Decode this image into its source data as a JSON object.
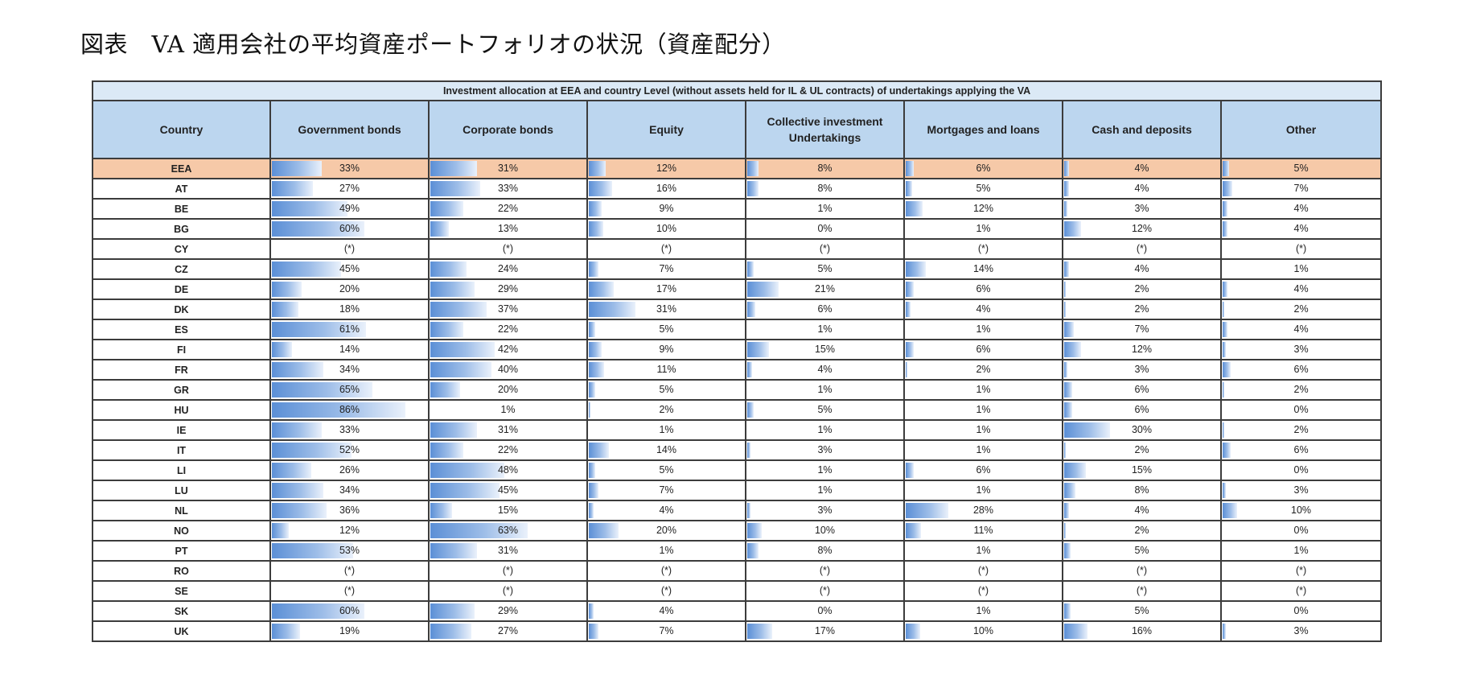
{
  "title": "図表　VA 適用会社の平均資産ポートフォリオの状況（資産配分）",
  "chart_data": {
    "type": "table",
    "caption": "Investment allocation at EEA and country Level (without assets held for IL & UL contracts) of undertakings applying the VA",
    "columns": [
      "Country",
      "Government bonds",
      "Corporate bonds",
      "Equity",
      "Collective investment Undertakings",
      "Mortgages and loans",
      "Cash and deposits",
      "Other"
    ],
    "highlight_row": "EEA",
    "bar_color": "#5b8fd6",
    "highlight_color": "#f6c9a8",
    "rows": [
      {
        "country": "EEA",
        "values": [
          "33%",
          "31%",
          "12%",
          "8%",
          "6%",
          "4%",
          "5%"
        ]
      },
      {
        "country": "AT",
        "values": [
          "27%",
          "33%",
          "16%",
          "8%",
          "5%",
          "4%",
          "7%"
        ]
      },
      {
        "country": "BE",
        "values": [
          "49%",
          "22%",
          "9%",
          "1%",
          "12%",
          "3%",
          "4%"
        ]
      },
      {
        "country": "BG",
        "values": [
          "60%",
          "13%",
          "10%",
          "0%",
          "1%",
          "12%",
          "4%"
        ]
      },
      {
        "country": "CY",
        "values": [
          "(*)",
          "(*)",
          "(*)",
          "(*)",
          "(*)",
          "(*)",
          "(*)"
        ]
      },
      {
        "country": "CZ",
        "values": [
          "45%",
          "24%",
          "7%",
          "5%",
          "14%",
          "4%",
          "1%"
        ]
      },
      {
        "country": "DE",
        "values": [
          "20%",
          "29%",
          "17%",
          "21%",
          "6%",
          "2%",
          "4%"
        ]
      },
      {
        "country": "DK",
        "values": [
          "18%",
          "37%",
          "31%",
          "6%",
          "4%",
          "2%",
          "2%"
        ]
      },
      {
        "country": "ES",
        "values": [
          "61%",
          "22%",
          "5%",
          "1%",
          "1%",
          "7%",
          "4%"
        ]
      },
      {
        "country": "FI",
        "values": [
          "14%",
          "42%",
          "9%",
          "15%",
          "6%",
          "12%",
          "3%"
        ]
      },
      {
        "country": "FR",
        "values": [
          "34%",
          "40%",
          "11%",
          "4%",
          "2%",
          "3%",
          "6%"
        ]
      },
      {
        "country": "GR",
        "values": [
          "65%",
          "20%",
          "5%",
          "1%",
          "1%",
          "6%",
          "2%"
        ]
      },
      {
        "country": "HU",
        "values": [
          "86%",
          "1%",
          "2%",
          "5%",
          "1%",
          "6%",
          "0%"
        ]
      },
      {
        "country": "IE",
        "values": [
          "33%",
          "31%",
          "1%",
          "1%",
          "1%",
          "30%",
          "2%"
        ]
      },
      {
        "country": "IT",
        "values": [
          "52%",
          "22%",
          "14%",
          "3%",
          "1%",
          "2%",
          "6%"
        ]
      },
      {
        "country": "LI",
        "values": [
          "26%",
          "48%",
          "5%",
          "1%",
          "6%",
          "15%",
          "0%"
        ]
      },
      {
        "country": "LU",
        "values": [
          "34%",
          "45%",
          "7%",
          "1%",
          "1%",
          "8%",
          "3%"
        ]
      },
      {
        "country": "NL",
        "values": [
          "36%",
          "15%",
          "4%",
          "3%",
          "28%",
          "4%",
          "10%"
        ]
      },
      {
        "country": "NO",
        "values": [
          "12%",
          "63%",
          "20%",
          "10%",
          "11%",
          "2%",
          "0%"
        ]
      },
      {
        "country": "PT",
        "values": [
          "53%",
          "31%",
          "1%",
          "8%",
          "1%",
          "5%",
          "1%"
        ]
      },
      {
        "country": "RO",
        "values": [
          "(*)",
          "(*)",
          "(*)",
          "(*)",
          "(*)",
          "(*)",
          "(*)"
        ]
      },
      {
        "country": "SE",
        "values": [
          "(*)",
          "(*)",
          "(*)",
          "(*)",
          "(*)",
          "(*)",
          "(*)"
        ]
      },
      {
        "country": "SK",
        "values": [
          "60%",
          "29%",
          "4%",
          "0%",
          "1%",
          "5%",
          "0%"
        ]
      },
      {
        "country": "UK",
        "values": [
          "19%",
          "27%",
          "7%",
          "17%",
          "10%",
          "16%",
          "3%"
        ]
      }
    ]
  }
}
